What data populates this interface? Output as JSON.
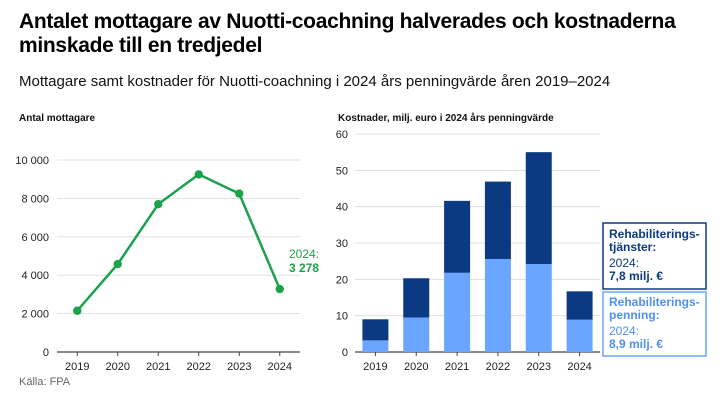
{
  "header": {
    "title": "Antalet mottagare av Nuotti-coachning halverades och kostnaderna minskade till en tredjedel",
    "subtitle": "Mottagare samt kostnader för Nuotti-coachning i 2024 års penningvärde åren 2019–2024"
  },
  "footer": {
    "source": "Källa: FPA"
  },
  "colors": {
    "line": "#1aa34a",
    "dark_blue": "#0b3a82",
    "light_blue": "#6aa6ff",
    "axis": "#444444",
    "grid": "#d9d9d9"
  },
  "chart_data": [
    {
      "type": "line",
      "ylabel": "Antal mottagare",
      "x": [
        "2019",
        "2020",
        "2021",
        "2022",
        "2023",
        "2024"
      ],
      "values": [
        2150,
        4580,
        7700,
        9250,
        8250,
        3278
      ],
      "ylim": [
        0,
        10000
      ],
      "yticks": [
        "0",
        "2 000",
        "4 000",
        "6 000",
        "8 000",
        "10 000"
      ],
      "grid": true,
      "annotation": {
        "line1": "2024:",
        "line2": "3 278"
      }
    },
    {
      "type": "bar",
      "stacked": true,
      "ylabel": "Kostnader, milj. euro i 2024 års penningvärde",
      "categories": [
        "2019",
        "2020",
        "2021",
        "2022",
        "2023",
        "2024"
      ],
      "ylim": [
        0,
        60
      ],
      "yticks": [
        "0",
        "10",
        "20",
        "30",
        "40",
        "50",
        "60"
      ],
      "grid": true,
      "series": [
        {
          "name": "Rehabiliterings-penning",
          "values": [
            3.2,
            9.5,
            21.8,
            25.6,
            24.2,
            8.9
          ]
        },
        {
          "name": "Rehabiliterings-tjänster",
          "values": [
            5.8,
            10.8,
            19.8,
            21.3,
            30.8,
            7.8
          ]
        }
      ],
      "legend": [
        {
          "line1": "Rehabiliterings-",
          "line2": "tjänster:",
          "year": "2024:",
          "value": "7,8 milj. €"
        },
        {
          "line1": "Rehabiliterings-",
          "line2": "penning:",
          "year": "2024:",
          "value": "8,9 milj. €"
        }
      ]
    }
  ]
}
